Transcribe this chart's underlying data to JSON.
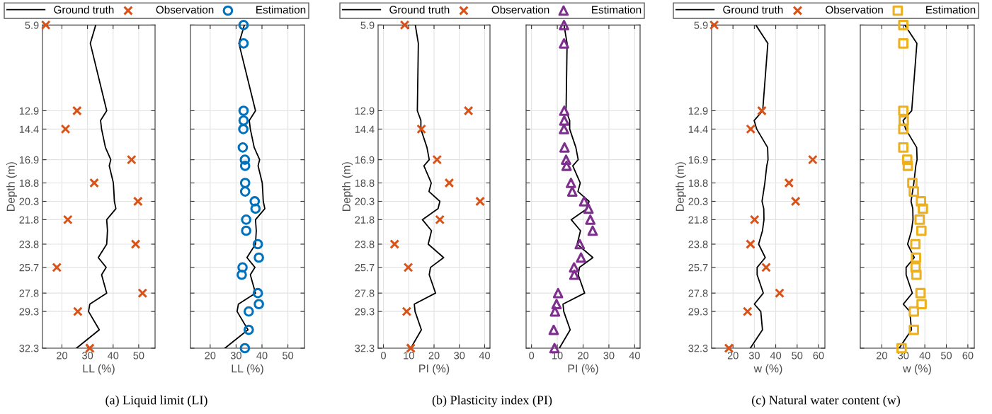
{
  "chart_data": [
    {
      "type": "line",
      "xlabel": "LL (%)",
      "ylabel": "Depth (m)",
      "xlim": [
        12.4,
        56.4
      ],
      "xticks": [
        20,
        30,
        40,
        50
      ],
      "ylim": [
        32.3,
        5.9
      ],
      "yticks": [
        5.9,
        12.9,
        14.4,
        16.9,
        18.8,
        20.3,
        21.8,
        23.8,
        25.7,
        27.8,
        29.3,
        32.3
      ],
      "grid": true,
      "legend": "top",
      "annotations": [
        "(a) Liquid limit (LI)"
      ],
      "series": [
        {
          "name": "Ground truth",
          "type": "line",
          "color": "#000000",
          "marker": "none",
          "line_style": "solid",
          "x": [
            33.2,
            31.1,
            37.5,
            35.1,
            35.5,
            37.0,
            39.1,
            38.5,
            40.1,
            40.3,
            40.5,
            41.1,
            37.5,
            37.8,
            37.5,
            34.2,
            37.3,
            35.5,
            37.5,
            30.9,
            30.4,
            34.6,
            25.7
          ],
          "values": [
            5.9,
            7.4,
            12.9,
            13.7,
            14.4,
            15.9,
            16.9,
            17.4,
            18.8,
            19.5,
            20.3,
            20.9,
            21.8,
            22.7,
            23.8,
            24.9,
            25.7,
            26.3,
            27.8,
            28.7,
            29.3,
            30.8,
            32.3
          ]
        },
        {
          "name": "Observation",
          "type": "scatter",
          "color": "#d95319",
          "marker": "cross",
          "x": [
            13.7,
            25.9,
            21.4,
            47.2,
            32.6,
            49.7,
            22.3,
            48.8,
            18.0,
            51.5,
            26.2,
            30.9
          ],
          "values": [
            5.9,
            12.9,
            14.4,
            16.9,
            18.8,
            20.3,
            21.8,
            23.8,
            25.7,
            27.8,
            29.3,
            32.3
          ]
        }
      ]
    },
    {
      "type": "line",
      "xlabel": "LL (%)",
      "xlim": [
        12.4,
        56.4
      ],
      "xticks": [
        20,
        30,
        40,
        50
      ],
      "ylim": [
        32.3,
        5.9
      ],
      "yticks": [
        5.9,
        12.9,
        14.4,
        16.9,
        18.8,
        20.3,
        21.8,
        23.8,
        25.7,
        27.8,
        29.3,
        32.3
      ],
      "grid": true,
      "tick_labels": "x",
      "series": [
        {
          "type": "line",
          "color": "#000000",
          "marker": "none",
          "line_style": "solid",
          "x": [
            33.2,
            31.1,
            37.5,
            35.1,
            35.5,
            37.0,
            39.1,
            38.5,
            40.1,
            40.3,
            40.5,
            41.1,
            37.5,
            37.8,
            37.5,
            34.2,
            37.3,
            35.5,
            37.5,
            30.9,
            30.4,
            34.6,
            25.7
          ],
          "values": [
            5.9,
            7.4,
            12.9,
            13.7,
            14.4,
            15.9,
            16.9,
            17.4,
            18.8,
            19.5,
            20.3,
            20.9,
            21.8,
            22.7,
            23.8,
            24.9,
            25.7,
            26.3,
            27.8,
            28.7,
            29.3,
            30.8,
            32.3
          ]
        },
        {
          "name": "Estimation",
          "type": "scatter",
          "color": "#0072bd",
          "marker": "circle",
          "x": [
            32.9,
            32.9,
            32.9,
            32.9,
            32.8,
            32.6,
            33.4,
            33.5,
            33.5,
            33.5,
            37.2,
            37.5,
            33.9,
            33.9,
            38.4,
            38.8,
            32.5,
            32.2,
            38.4,
            38.8,
            34.9,
            34.9,
            33.4
          ],
          "values": [
            5.9,
            7.4,
            12.9,
            13.7,
            14.4,
            15.9,
            16.9,
            17.4,
            18.8,
            19.5,
            20.3,
            20.9,
            21.8,
            22.7,
            23.8,
            24.9,
            25.7,
            26.3,
            27.8,
            28.7,
            29.3,
            30.8,
            32.3
          ]
        }
      ]
    },
    {
      "type": "line",
      "xlabel": "PI (%)",
      "ylabel": "Depth (m)",
      "xlim": [
        -2.1,
        42.1
      ],
      "xticks": [
        0,
        10,
        20,
        30,
        40
      ],
      "ylim": [
        32.3,
        5.9
      ],
      "yticks": [
        5.9,
        12.9,
        14.4,
        16.9,
        18.8,
        20.3,
        21.8,
        23.8,
        25.7,
        27.8,
        29.3,
        32.3
      ],
      "grid": true,
      "legend": "top",
      "annotations": [
        "(b) Plasticity index (PI)"
      ],
      "series": [
        {
          "name": "Ground truth",
          "type": "line",
          "color": "#000000",
          "marker": "none",
          "line_style": "solid",
          "x": [
            12.6,
            13.8,
            13.4,
            14.8,
            14.8,
            17.2,
            18.1,
            16.0,
            18.9,
            18.0,
            22.3,
            21.6,
            15.4,
            19.0,
            17.7,
            23.8,
            18.6,
            18.1,
            20.6,
            12.2,
            12.5,
            15.0,
            10.8
          ],
          "values": [
            5.9,
            7.4,
            12.9,
            13.7,
            14.4,
            15.9,
            16.9,
            17.4,
            18.8,
            19.5,
            20.3,
            20.9,
            21.8,
            22.7,
            23.8,
            24.9,
            25.7,
            26.3,
            27.8,
            28.7,
            29.3,
            30.8,
            32.3
          ]
        },
        {
          "name": "Observation",
          "type": "scatter",
          "color": "#d95319",
          "marker": "cross",
          "x": [
            8.4,
            33.6,
            15.0,
            21.2,
            26.0,
            38.2,
            22.3,
            4.4,
            9.8,
            9.2,
            10.8
          ],
          "values": [
            5.9,
            12.9,
            14.4,
            16.9,
            18.8,
            20.3,
            21.8,
            23.8,
            25.7,
            29.3,
            32.3
          ]
        }
      ]
    },
    {
      "type": "line",
      "xlabel": "PI (%)",
      "xlim": [
        -2.1,
        42.1
      ],
      "xticks": [
        0,
        10,
        20,
        30,
        40
      ],
      "ylim": [
        32.3,
        5.9
      ],
      "yticks": [
        5.9,
        12.9,
        14.4,
        16.9,
        18.8,
        20.3,
        21.8,
        23.8,
        25.7,
        27.8,
        29.3,
        32.3
      ],
      "grid": true,
      "tick_labels": "x",
      "series": [
        {
          "type": "line",
          "color": "#000000",
          "marker": "none",
          "line_style": "solid",
          "x": [
            12.6,
            13.8,
            13.4,
            14.8,
            14.8,
            17.2,
            18.1,
            16.0,
            18.9,
            18.0,
            22.3,
            21.6,
            15.4,
            19.0,
            17.7,
            23.8,
            18.6,
            18.1,
            20.6,
            12.2,
            12.5,
            15.0,
            10.8
          ],
          "values": [
            5.9,
            7.4,
            12.9,
            13.7,
            14.4,
            15.9,
            16.9,
            17.4,
            18.8,
            19.5,
            20.3,
            20.9,
            21.8,
            22.7,
            23.8,
            24.9,
            25.7,
            26.3,
            27.8,
            28.7,
            29.3,
            30.8,
            32.3
          ]
        },
        {
          "name": "Estimation",
          "type": "scatter",
          "color": "#7e2f8e",
          "marker": "triangle",
          "x": [
            12.6,
            12.6,
            12.7,
            12.7,
            12.6,
            12.8,
            13.4,
            13.6,
            15.3,
            15.8,
            20.4,
            22.1,
            22.8,
            23.7,
            18.7,
            19.2,
            16.5,
            16.6,
            10.3,
            9.7,
            9.1,
            8.6,
            8.9
          ],
          "values": [
            5.9,
            7.4,
            12.9,
            13.7,
            14.4,
            15.9,
            16.9,
            17.4,
            18.8,
            19.5,
            20.3,
            20.9,
            21.8,
            22.7,
            23.8,
            24.9,
            25.7,
            26.3,
            27.8,
            28.7,
            29.3,
            30.8,
            32.3
          ]
        }
      ]
    },
    {
      "type": "line",
      "xlabel": "w (%)",
      "ylabel": "Depth (m)",
      "xlim": [
        10.0,
        63.0
      ],
      "xticks": [
        20,
        30,
        40,
        50,
        60
      ],
      "ylim": [
        32.3,
        5.9
      ],
      "yticks": [
        5.9,
        12.9,
        14.4,
        16.9,
        18.8,
        20.3,
        21.8,
        23.8,
        25.7,
        27.8,
        29.3,
        32.3
      ],
      "grid": true,
      "legend": "top",
      "annotations": [
        "(c) Natural water content (w)"
      ],
      "series": [
        {
          "name": "Ground truth",
          "type": "line",
          "color": "#000000",
          "marker": "none",
          "line_style": "solid",
          "x": [
            30.7,
            36.3,
            33.9,
            29.9,
            31.1,
            36.2,
            36.4,
            35.8,
            34.9,
            34.3,
            33.6,
            34.4,
            34.5,
            33.8,
            32.0,
            35.1,
            31.3,
            31.3,
            34.2,
            30.0,
            33.0,
            33.8,
            28.1
          ],
          "values": [
            5.9,
            7.4,
            12.9,
            13.7,
            14.4,
            15.9,
            16.9,
            17.4,
            18.8,
            19.5,
            20.3,
            20.9,
            21.8,
            22.7,
            23.8,
            24.9,
            25.7,
            26.3,
            27.8,
            28.7,
            29.3,
            30.8,
            32.3
          ]
        },
        {
          "name": "Observation",
          "type": "scatter",
          "color": "#d95319",
          "marker": "cross",
          "x": [
            11.2,
            33.5,
            28.3,
            57.3,
            46.2,
            49.3,
            30.1,
            28.2,
            35.5,
            41.8,
            26.8,
            18.1
          ],
          "values": [
            5.9,
            12.9,
            14.4,
            16.9,
            18.8,
            20.3,
            21.8,
            23.8,
            25.7,
            27.8,
            29.3,
            32.3
          ]
        }
      ]
    },
    {
      "type": "line",
      "xlabel": "w (%)",
      "xlim": [
        10.0,
        63.0
      ],
      "xticks": [
        20,
        30,
        40,
        50,
        60
      ],
      "ylim": [
        32.3,
        5.9
      ],
      "yticks": [
        5.9,
        12.9,
        14.4,
        16.9,
        18.8,
        20.3,
        21.8,
        23.8,
        25.7,
        27.8,
        29.3,
        32.3
      ],
      "grid": true,
      "tick_labels": "x",
      "series": [
        {
          "type": "line",
          "color": "#000000",
          "marker": "none",
          "line_style": "solid",
          "x": [
            30.7,
            36.3,
            33.9,
            29.9,
            31.1,
            36.2,
            36.4,
            35.8,
            34.9,
            34.3,
            33.6,
            34.4,
            34.5,
            33.8,
            32.0,
            35.1,
            31.3,
            31.3,
            34.2,
            30.0,
            33.0,
            33.8,
            28.1
          ],
          "values": [
            5.9,
            7.4,
            12.9,
            13.7,
            14.4,
            15.9,
            16.9,
            17.4,
            18.8,
            19.5,
            20.3,
            20.9,
            21.8,
            22.7,
            23.8,
            24.9,
            25.7,
            26.3,
            27.8,
            28.7,
            29.3,
            30.8,
            32.3
          ]
        },
        {
          "name": "Estimation",
          "type": "scatter",
          "color": "#edb120",
          "marker": "square",
          "x": [
            30.0,
            30.0,
            30.0,
            30.2,
            30.0,
            30.0,
            31.8,
            32.1,
            34.2,
            34.9,
            38.2,
            39.1,
            37.6,
            38.4,
            35.6,
            35.9,
            35.7,
            36.1,
            38.0,
            38.5,
            34.9,
            34.9,
            29.2
          ],
          "values": [
            5.9,
            7.4,
            12.9,
            13.7,
            14.4,
            15.9,
            16.9,
            17.4,
            18.8,
            19.5,
            20.3,
            20.9,
            21.8,
            22.7,
            23.8,
            24.9,
            25.7,
            26.3,
            27.8,
            28.7,
            29.3,
            30.8,
            32.3
          ]
        }
      ]
    }
  ]
}
